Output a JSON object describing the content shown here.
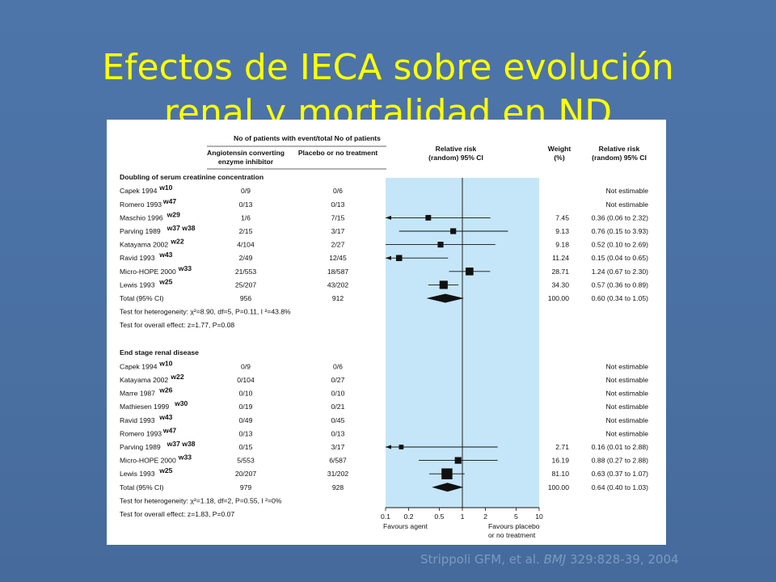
{
  "slide": {
    "title_line1": "Efectos de IECA sobre evolución",
    "title_line2": "renal y mortalidad en ND",
    "citation_pre": "Strippoli GFM, et al. ",
    "citation_journal": "BMJ",
    "citation_post": " 329:828-39, 2004"
  },
  "figure": {
    "header_group": "No of patients with event/total No of patients",
    "col_agent_line1": "Angiotensin converting",
    "col_agent_line2": "enzyme inhibitor",
    "col_placebo": "Placebo or no treatment",
    "col_rr_line1": "Relative risk",
    "col_rr_line2": "(random) 95% CI",
    "col_weight_line1": "Weight",
    "col_weight_line2": "(%)",
    "col_rr2_line1": "Relative risk",
    "col_rr2_line2": "(random) 95% CI",
    "axis_ticks": [
      "0.1",
      "0.2",
      "0.5",
      "1",
      "2",
      "5",
      "10"
    ],
    "favours_agent": "Favours agent",
    "favours_placebo_line1": "Favours placebo",
    "favours_placebo_line2": "or no treatment",
    "sections": [
      {
        "title": "Doubling of serum creatinine concentration",
        "rows": [
          {
            "study": "Capek 1994",
            "sup": "w10",
            "agent": "0/9",
            "placebo": "0/6",
            "weight": "",
            "rr": "Not estimable",
            "est": null,
            "lo": null,
            "hi": null
          },
          {
            "study": "Romero 1993",
            "sup": "w47",
            "agent": "0/13",
            "placebo": "0/13",
            "weight": "",
            "rr": "Not estimable",
            "est": null,
            "lo": null,
            "hi": null
          },
          {
            "study": "Maschio 1996",
            "sup": "w29",
            "agent": "1/6",
            "placebo": "7/15",
            "weight": "7.45",
            "rr": "0.36 (0.06 to 2.32)",
            "est": 0.36,
            "lo": 0.06,
            "hi": 2.32
          },
          {
            "study": "Parving 1989",
            "sup": "w37 w38",
            "agent": "2/15",
            "placebo": "3/17",
            "weight": "9.13",
            "rr": "0.76 (0.15 to 3.93)",
            "est": 0.76,
            "lo": 0.15,
            "hi": 3.93
          },
          {
            "study": "Katayama 2002",
            "sup": "w22",
            "agent": "4/104",
            "placebo": "2/27",
            "weight": "9.18",
            "rr": "0.52 (0.10 to 2.69)",
            "est": 0.52,
            "lo": 0.1,
            "hi": 2.69
          },
          {
            "study": "Ravid 1993",
            "sup": "w43",
            "agent": "2/49",
            "placebo": "12/45",
            "weight": "11.24",
            "rr": "0.15 (0.04 to 0.65)",
            "est": 0.15,
            "lo": 0.04,
            "hi": 0.65
          },
          {
            "study": "Micro-HOPE 2000",
            "sup": "w33",
            "agent": "21/553",
            "placebo": "18/587",
            "weight": "28.71",
            "rr": "1.24 (0.67 to 2.30)",
            "est": 1.24,
            "lo": 0.67,
            "hi": 2.3
          },
          {
            "study": "Lewis 1993",
            "sup": "w25",
            "agent": "25/207",
            "placebo": "43/202",
            "weight": "34.30",
            "rr": "0.57 (0.36 to 0.89)",
            "est": 0.57,
            "lo": 0.36,
            "hi": 0.89
          }
        ],
        "total": {
          "label": "Total (95% CI)",
          "agent": "956",
          "placebo": "912",
          "weight": "100.00",
          "rr": "0.60 (0.34 to 1.05)",
          "est": 0.6,
          "lo": 0.34,
          "hi": 1.05
        },
        "heterogeneity": "Test for heterogeneity: χ²=8.90, df=5, P=0.11, I ²=43.8%",
        "overall": "Test for overall effect: z=1.77, P=0.08"
      },
      {
        "title": "End stage renal disease",
        "rows": [
          {
            "study": "Capek 1994",
            "sup": "w10",
            "agent": "0/9",
            "placebo": "0/6",
            "weight": "",
            "rr": "Not estimable",
            "est": null,
            "lo": null,
            "hi": null
          },
          {
            "study": "Katayama 2002",
            "sup": "w22",
            "agent": "0/104",
            "placebo": "0/27",
            "weight": "",
            "rr": "Not estimable",
            "est": null,
            "lo": null,
            "hi": null
          },
          {
            "study": "Marre 1987",
            "sup": "w26",
            "agent": "0/10",
            "placebo": "0/10",
            "weight": "",
            "rr": "Not estimable",
            "est": null,
            "lo": null,
            "hi": null
          },
          {
            "study": "Mathiesen 1999",
            "sup": "w30",
            "agent": "0/19",
            "placebo": "0/21",
            "weight": "",
            "rr": "Not estimable",
            "est": null,
            "lo": null,
            "hi": null
          },
          {
            "study": "Ravid 1993",
            "sup": "w43",
            "agent": "0/49",
            "placebo": "0/45",
            "weight": "",
            "rr": "Not estimable",
            "est": null,
            "lo": null,
            "hi": null
          },
          {
            "study": "Romero 1993",
            "sup": "w47",
            "agent": "0/13",
            "placebo": "0/13",
            "weight": "",
            "rr": "Not estimable",
            "est": null,
            "lo": null,
            "hi": null
          },
          {
            "study": "Parving 1989",
            "sup": "w37 w38",
            "agent": "0/15",
            "placebo": "3/17",
            "weight": "2.71",
            "rr": "0.16 (0.01 to 2.88)",
            "est": 0.16,
            "lo": 0.01,
            "hi": 2.88
          },
          {
            "study": "Micro-HOPE 2000",
            "sup": "w33",
            "agent": "5/553",
            "placebo": "6/587",
            "weight": "16.19",
            "rr": "0.88 (0.27 to 2.88)",
            "est": 0.88,
            "lo": 0.27,
            "hi": 2.88
          },
          {
            "study": "Lewis 1993",
            "sup": "w25",
            "agent": "20/207",
            "placebo": "31/202",
            "weight": "81.10",
            "rr": "0.63 (0.37 to 1.07)",
            "est": 0.63,
            "lo": 0.37,
            "hi": 1.07
          }
        ],
        "total": {
          "label": "Total (95% CI)",
          "agent": "979",
          "placebo": "928",
          "weight": "100.00",
          "rr": "0.64 (0.40 to 1.03)",
          "est": 0.64,
          "lo": 0.4,
          "hi": 1.03
        },
        "heterogeneity": "Test for heterogeneity: χ²=1.18, df=2, P=0.55, I ²=0%",
        "overall": "Test for overall effect: z=1.83, P=0.07"
      }
    ]
  },
  "colors": {
    "slide_bg": "#4d74a8",
    "title": "#ffff00",
    "plot_band": "#c5e6f8",
    "citation": "#7a9ac3"
  }
}
